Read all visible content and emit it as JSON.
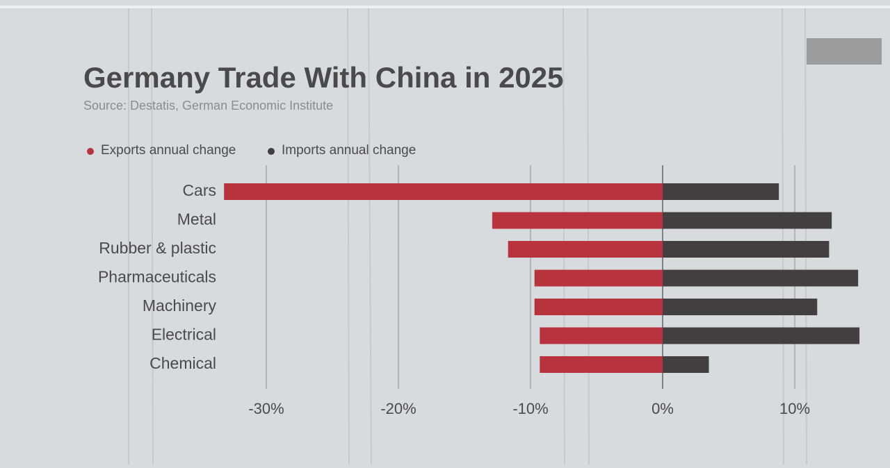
{
  "chart_data": {
    "type": "diverging-bar",
    "title": "Germany Trade With China in 2025",
    "subtitle": "Source: Destatis, German Economic Institute",
    "categories": [
      "Cars",
      "Metal",
      "Rubber & plastic",
      "Pharmaceuticals",
      "Machinery",
      "Electrical",
      "Chemical"
    ],
    "series": [
      {
        "name": "Exports annual change",
        "color": "#b7343e",
        "values": [
          -33.2,
          -12.9,
          -11.7,
          -9.7,
          -9.7,
          -9.3,
          -9.3
        ]
      },
      {
        "name": "Imports annual change",
        "color": "#433f40",
        "values": [
          8.8,
          12.8,
          12.6,
          14.8,
          11.7,
          14.9,
          3.5
        ]
      }
    ],
    "xlim": [
      -34,
      16
    ],
    "xticks": [
      {
        "value": -30,
        "label": "-30%"
      },
      {
        "value": -20,
        "label": "-20%"
      },
      {
        "value": -10,
        "label": "-10%"
      },
      {
        "value": 0,
        "label": "0%"
      },
      {
        "value": 10,
        "label": "10%"
      }
    ],
    "grid": true
  }
}
